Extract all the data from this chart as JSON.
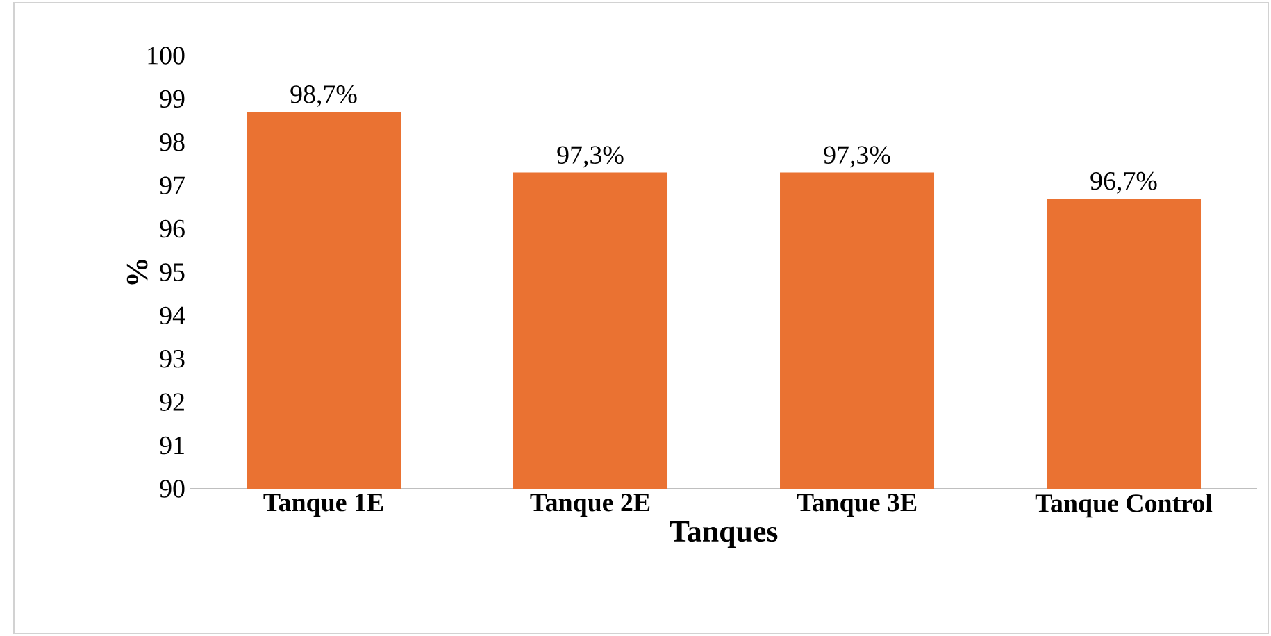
{
  "chart_data": {
    "type": "bar",
    "xlabel": "Tanques",
    "ylabel": "%",
    "categories": [
      "Tanque 1E",
      "Tanque 2E",
      "Tanque 3E",
      "Tanque Control"
    ],
    "values": [
      98.7,
      97.3,
      97.3,
      96.7
    ],
    "value_labels": [
      "98,7%",
      "97,3%",
      "97,3%",
      "96,7%"
    ],
    "color": "#ea7232",
    "ylim": [
      90,
      100
    ],
    "yticks": [
      90,
      91,
      92,
      93,
      94,
      95,
      96,
      97,
      98,
      99,
      100
    ],
    "grid": false
  }
}
